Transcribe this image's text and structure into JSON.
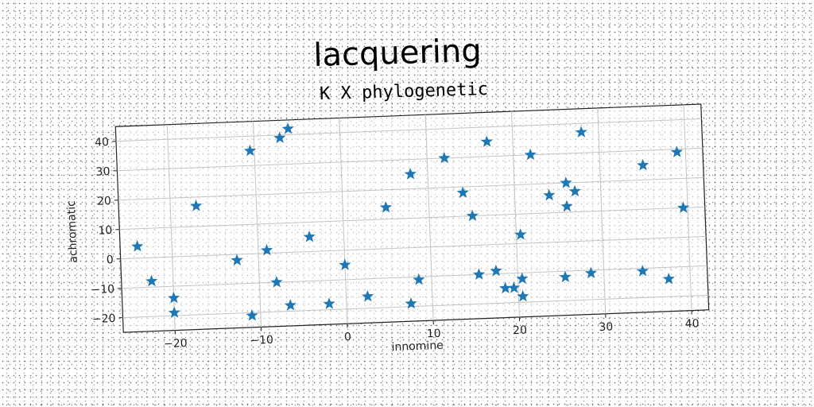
{
  "chart_data": {
    "type": "scatter",
    "title": "lacquering",
    "subtitle": "K X phylogenetic",
    "xlabel": "innomine",
    "ylabel": "achromatic",
    "xlim": [
      -26,
      42
    ],
    "ylim": [
      -25,
      45
    ],
    "xticks": [
      -20,
      -10,
      0,
      10,
      20,
      30,
      40
    ],
    "yticks": [
      -20,
      -10,
      0,
      10,
      20,
      30,
      40
    ],
    "grid": true,
    "marker": "star",
    "color": "#1f77b4",
    "points": [
      {
        "x": -24,
        "y": 4
      },
      {
        "x": -22.5,
        "y": -8
      },
      {
        "x": -20,
        "y": -14
      },
      {
        "x": -20,
        "y": -19
      },
      {
        "x": -17,
        "y": 17
      },
      {
        "x": -12.5,
        "y": -2
      },
      {
        "x": -10.5,
        "y": 35
      },
      {
        "x": -9,
        "y": 1
      },
      {
        "x": -8,
        "y": -10
      },
      {
        "x": -7,
        "y": 39
      },
      {
        "x": -6.5,
        "y": -18
      },
      {
        "x": -6,
        "y": 42
      },
      {
        "x": -4,
        "y": 5
      },
      {
        "x": -11,
        "y": -21
      },
      {
        "x": -2,
        "y": -18
      },
      {
        "x": 0,
        "y": -5
      },
      {
        "x": 2.5,
        "y": -16
      },
      {
        "x": 5,
        "y": 14
      },
      {
        "x": 7.5,
        "y": -19
      },
      {
        "x": 8,
        "y": 25
      },
      {
        "x": 8.5,
        "y": -11
      },
      {
        "x": 12,
        "y": 30
      },
      {
        "x": 14,
        "y": 18
      },
      {
        "x": 15,
        "y": 10
      },
      {
        "x": 15.5,
        "y": -10
      },
      {
        "x": 17,
        "y": 35
      },
      {
        "x": 17.5,
        "y": -9
      },
      {
        "x": 18.5,
        "y": -15
      },
      {
        "x": 19.5,
        "y": -15
      },
      {
        "x": 20.5,
        "y": 3
      },
      {
        "x": 20.5,
        "y": -12
      },
      {
        "x": 20.5,
        "y": -18
      },
      {
        "x": 22,
        "y": 30
      },
      {
        "x": 24,
        "y": 16
      },
      {
        "x": 25.5,
        "y": -12
      },
      {
        "x": 26,
        "y": 20
      },
      {
        "x": 26,
        "y": 12
      },
      {
        "x": 27,
        "y": 17
      },
      {
        "x": 28,
        "y": 37
      },
      {
        "x": 28.5,
        "y": -11
      },
      {
        "x": 34.5,
        "y": -11
      },
      {
        "x": 35,
        "y": 25
      },
      {
        "x": 37.5,
        "y": -14
      },
      {
        "x": 39,
        "y": 29
      },
      {
        "x": 39.5,
        "y": 10
      }
    ]
  }
}
